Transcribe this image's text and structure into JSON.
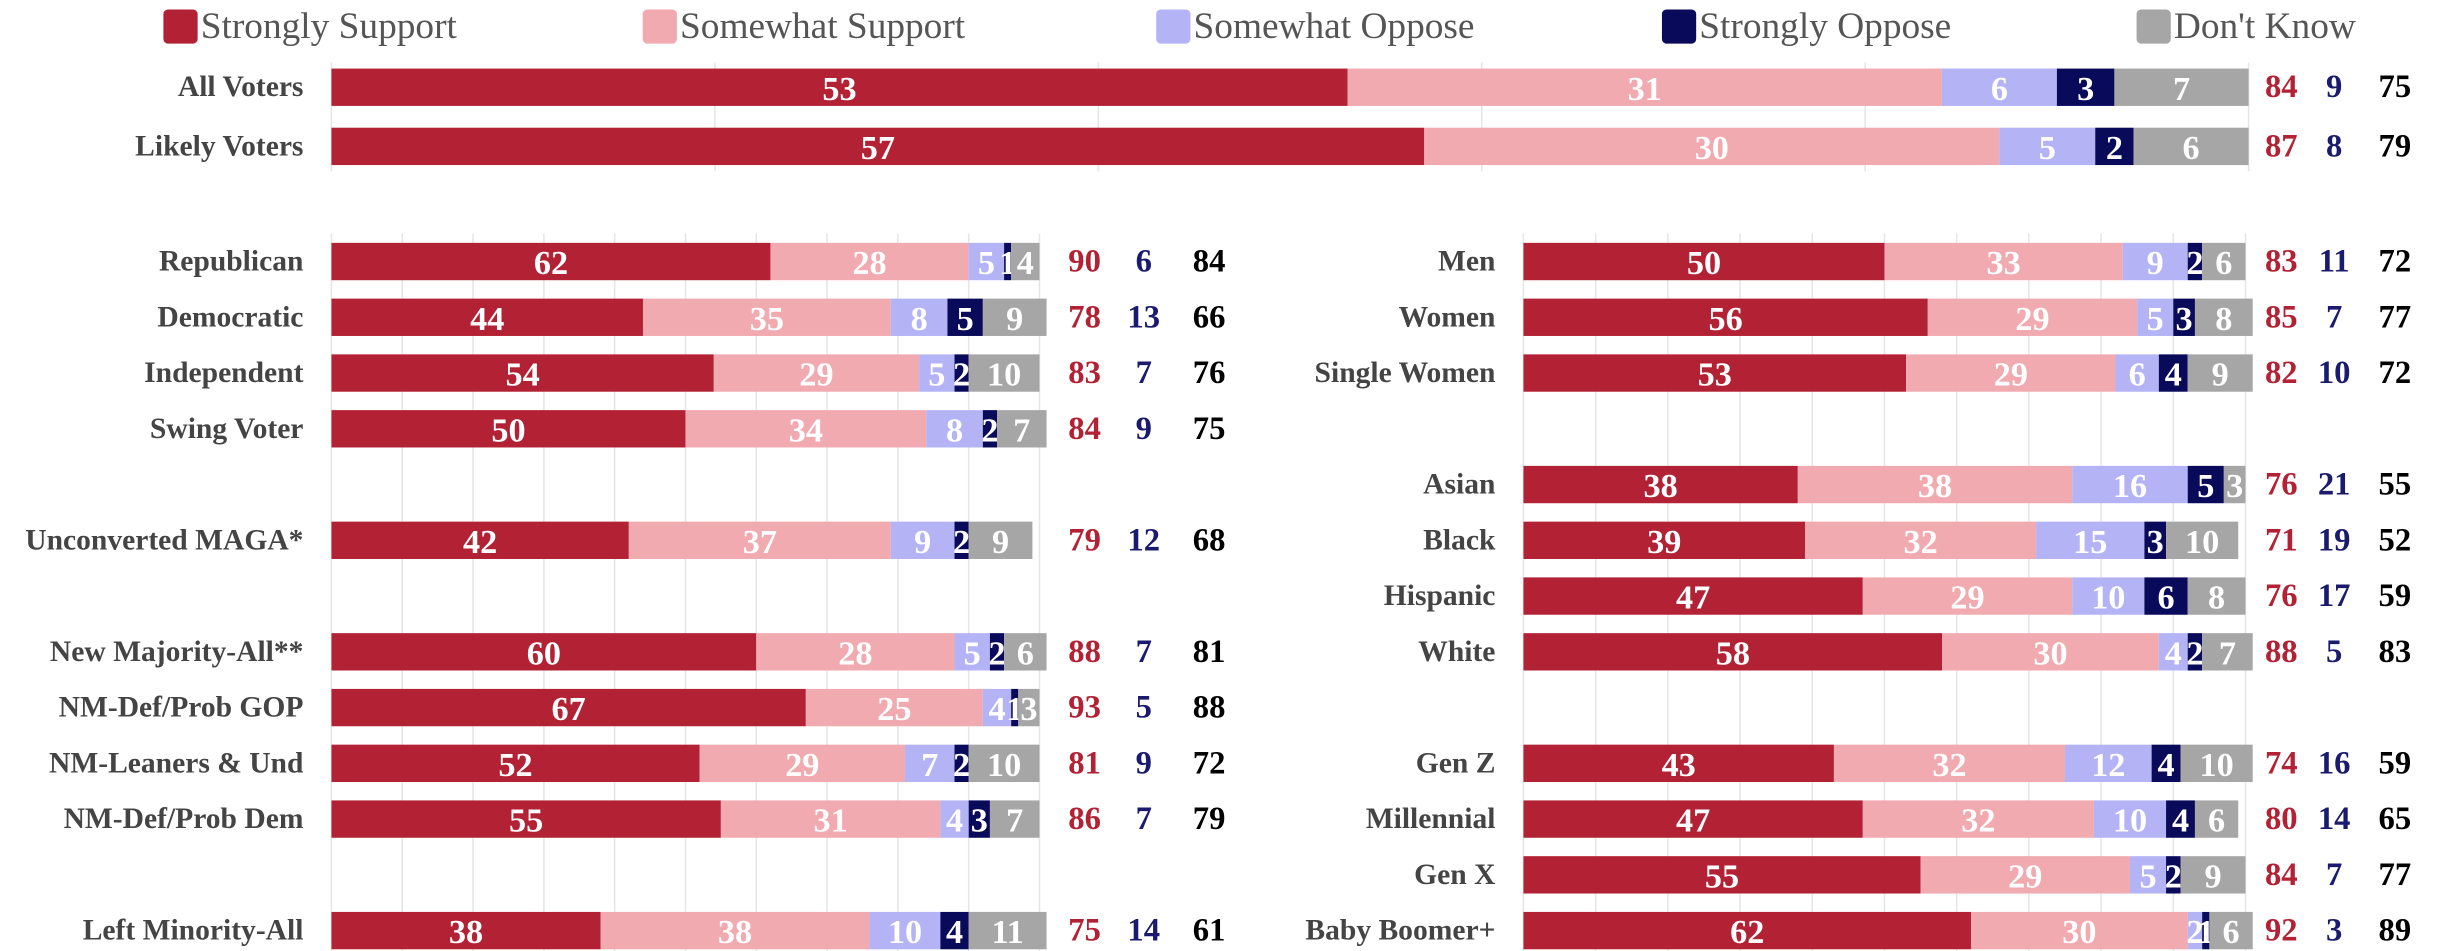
{
  "chart_data": [
    {
      "type": "bar",
      "orientation": "horizontal",
      "stacked": true,
      "categories": [
        "All Voters",
        "Likely Voters"
      ],
      "series": [
        {
          "name": "Strongly Support",
          "color": "#b22234",
          "values": [
            53,
            57
          ]
        },
        {
          "name": "Somewhat Support",
          "color": "#f0aab0",
          "values": [
            31,
            30
          ]
        },
        {
          "name": "Somewhat Oppose",
          "color": "#b3b3f5",
          "values": [
            6,
            5
          ]
        },
        {
          "name": "Strongly Oppose",
          "color": "#0a0a5a",
          "values": [
            3,
            2
          ]
        },
        {
          "name": "Don't Know",
          "color": "#a6a6a6",
          "values": [
            7,
            6
          ]
        }
      ],
      "totals": [
        {
          "color": "#b22234",
          "values": [
            84,
            87
          ]
        },
        {
          "color": "#1a1a6e",
          "values": [
            9,
            8
          ]
        },
        {
          "color": "#000000",
          "values": [
            75,
            79
          ]
        }
      ],
      "xlim": [
        0,
        100
      ],
      "xticks": [
        0,
        20,
        40,
        60,
        80,
        100
      ],
      "grid": true
    },
    {
      "type": "bar",
      "orientation": "horizontal",
      "stacked": true,
      "categories": [
        "Republican",
        "Democratic",
        "Independent",
        "Swing Voter",
        null,
        "Unconverted MAGA*",
        null,
        "New Majority-All**",
        "NM-Def/Prob GOP",
        "NM-Leaners & Und",
        "NM-Def/Prob Dem",
        null,
        "Left Minority-All"
      ],
      "series": [
        {
          "color": "#b22234",
          "values": [
            62,
            44,
            54,
            50,
            null,
            42,
            null,
            60,
            67,
            52,
            55,
            null,
            38
          ]
        },
        {
          "color": "#f0aab0",
          "values": [
            28,
            35,
            29,
            34,
            null,
            37,
            null,
            28,
            25,
            29,
            31,
            null,
            38
          ]
        },
        {
          "color": "#b3b3f5",
          "values": [
            5,
            8,
            5,
            8,
            null,
            9,
            null,
            5,
            4,
            7,
            4,
            null,
            10
          ]
        },
        {
          "color": "#0a0a5a",
          "values": [
            1,
            5,
            2,
            2,
            null,
            2,
            null,
            2,
            1,
            2,
            3,
            null,
            4
          ]
        },
        {
          "color": "#a6a6a6",
          "values": [
            4,
            9,
            10,
            7,
            null,
            9,
            null,
            6,
            3,
            10,
            7,
            null,
            11
          ]
        }
      ],
      "totals": [
        {
          "color": "#b22234",
          "values": [
            90,
            78,
            83,
            84,
            null,
            79,
            null,
            88,
            93,
            81,
            86,
            null,
            75
          ]
        },
        {
          "color": "#1a1a6e",
          "values": [
            6,
            13,
            7,
            9,
            null,
            12,
            null,
            7,
            5,
            9,
            7,
            null,
            14
          ]
        },
        {
          "color": "#000000",
          "values": [
            84,
            66,
            76,
            75,
            null,
            68,
            null,
            81,
            88,
            72,
            79,
            null,
            61
          ]
        }
      ],
      "xlim": [
        0,
        100
      ],
      "xticks": [
        0,
        10,
        20,
        30,
        40,
        50,
        60,
        70,
        80,
        90,
        100
      ],
      "grid": true
    },
    {
      "type": "bar",
      "orientation": "horizontal",
      "stacked": true,
      "categories": [
        "Men",
        "Women",
        "Single Women",
        null,
        "Asian",
        "Black",
        "Hispanic",
        "White",
        null,
        "Gen Z",
        "Millennial",
        "Gen X",
        "Baby Boomer+"
      ],
      "series": [
        {
          "color": "#b22234",
          "values": [
            50,
            56,
            53,
            null,
            38,
            39,
            47,
            58,
            null,
            43,
            47,
            55,
            62
          ]
        },
        {
          "color": "#f0aab0",
          "values": [
            33,
            29,
            29,
            null,
            38,
            32,
            29,
            30,
            null,
            32,
            32,
            29,
            30
          ]
        },
        {
          "color": "#b3b3f5",
          "values": [
            9,
            5,
            6,
            null,
            16,
            15,
            10,
            4,
            null,
            12,
            10,
            5,
            2
          ]
        },
        {
          "color": "#0a0a5a",
          "values": [
            2,
            3,
            4,
            null,
            5,
            3,
            6,
            2,
            null,
            4,
            4,
            2,
            1
          ]
        },
        {
          "color": "#a6a6a6",
          "values": [
            6,
            8,
            9,
            null,
            3,
            10,
            8,
            7,
            null,
            10,
            6,
            9,
            6
          ]
        }
      ],
      "totals": [
        {
          "color": "#b22234",
          "values": [
            83,
            85,
            82,
            null,
            76,
            71,
            76,
            88,
            null,
            74,
            80,
            84,
            92
          ]
        },
        {
          "color": "#1a1a6e",
          "values": [
            11,
            7,
            10,
            null,
            21,
            19,
            17,
            5,
            null,
            16,
            14,
            7,
            3
          ]
        },
        {
          "color": "#000000",
          "values": [
            72,
            77,
            72,
            null,
            55,
            52,
            59,
            83,
            null,
            59,
            65,
            77,
            89
          ]
        }
      ],
      "xlim": [
        0,
        100
      ],
      "xticks": [
        0,
        10,
        20,
        30,
        40,
        50,
        60,
        70,
        80,
        90,
        100
      ],
      "grid": true
    }
  ]
}
